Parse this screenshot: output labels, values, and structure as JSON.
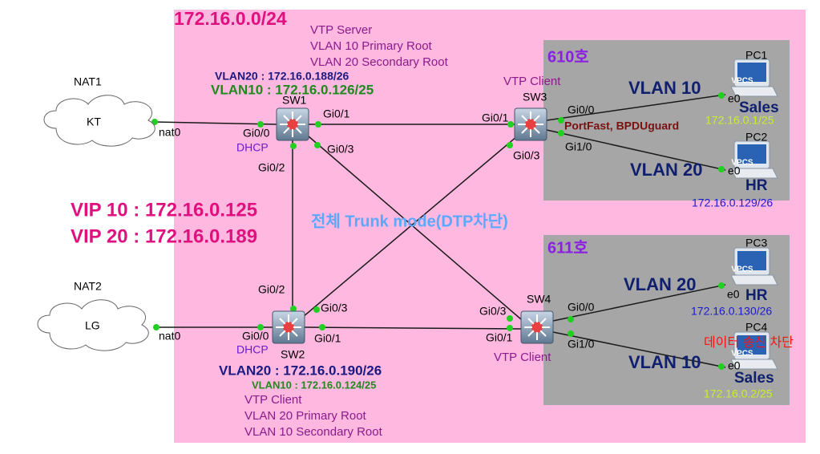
{
  "network": {
    "subnet": "172.16.0.0/24",
    "trunk_note": "전체 Trunk mode(DTP차단)",
    "vips": [
      "VIP 10 : 172.16.0.125",
      "VIP 20 : 172.16.0.189"
    ],
    "clouds": [
      {
        "label": "NAT1",
        "name": "KT",
        "port": "nat0"
      },
      {
        "label": "NAT2",
        "name": "LG",
        "port": "nat0"
      }
    ],
    "switches": [
      {
        "name": "SW1",
        "ports": [
          "Gi0/0",
          "Gi0/1",
          "Gi0/2",
          "Gi0/3"
        ],
        "dhcp": "DHCP",
        "vlan20_ip": "VLAN20 : 172.16.0.188/26",
        "vlan10_ip": "VLAN10 : 172.16.0.126/25",
        "vtp": [
          "VTP Server",
          "VLAN 10 Primary Root",
          "VLAN 20 Secondary Root"
        ]
      },
      {
        "name": "SW2",
        "ports": [
          "Gi0/0",
          "Gi0/1",
          "Gi0/2",
          "Gi0/3"
        ],
        "dhcp": "DHCP",
        "vlan20_ip": "VLAN20 : 172.16.0.190/26",
        "vlan10_ip": "VLAN10 : 172.16.0.124/25",
        "vtp": [
          "VTP Client",
          "VLAN 20 Primary Root",
          "VLAN 10 Secondary Root"
        ]
      },
      {
        "name": "SW3",
        "ports": [
          "Gi0/1",
          "Gi0/0",
          "Gi1/0",
          "Gi0/3"
        ],
        "vtp": "VTP Client",
        "note": "PortFast, BPDUguard"
      },
      {
        "name": "SW4",
        "ports": [
          "Gi0/3",
          "Gi0/1",
          "Gi0/0",
          "Gi1/0"
        ],
        "vtp": "VTP Client"
      }
    ],
    "rooms": [
      "610호",
      "611호"
    ],
    "links": [
      "VLAN 10",
      "VLAN 20",
      "VLAN 20",
      "VLAN 10"
    ],
    "pcs": [
      {
        "name": "PC1",
        "port": "e0",
        "icon": "VPCS",
        "dept": "Sales",
        "ip": "172.16.0.1/25"
      },
      {
        "name": "PC2",
        "port": "e0",
        "icon": "VPCS",
        "dept": "HR",
        "ip": "172.16.0.129/26"
      },
      {
        "name": "PC3",
        "port": "e0",
        "icon": "VPCS",
        "dept": "HR",
        "ip": "172.16.0.130/26"
      },
      {
        "name": "PC4",
        "port": "e0",
        "icon": "VPCS",
        "dept": "Sales",
        "ip": "172.16.0.2/25",
        "note": "데이터 송신 차단"
      }
    ]
  }
}
